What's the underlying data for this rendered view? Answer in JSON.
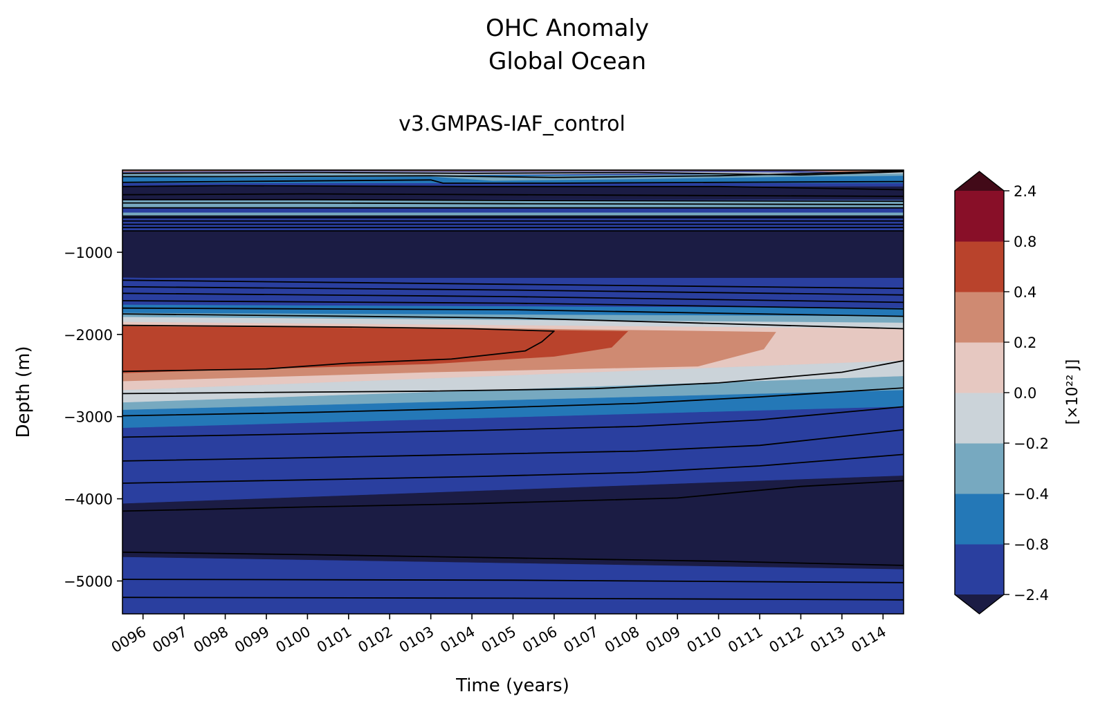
{
  "chart_data": {
    "type": "heatmap",
    "title": "OHC Anomaly",
    "subtitle": "Global Ocean",
    "run_name": "v3.GMPAS-IAF_control",
    "xlabel": "Time (years)",
    "ylabel": "Depth (m)",
    "colorbar_label": "[×10²² J]",
    "x_range": [
      95.5,
      114.5
    ],
    "y_range": [
      -5400,
      0
    ],
    "x_ticks": [
      {
        "value": 96,
        "label": "0096"
      },
      {
        "value": 97,
        "label": "0097"
      },
      {
        "value": 98,
        "label": "0098"
      },
      {
        "value": 99,
        "label": "0099"
      },
      {
        "value": 100,
        "label": "0100"
      },
      {
        "value": 101,
        "label": "0101"
      },
      {
        "value": 102,
        "label": "0102"
      },
      {
        "value": 103,
        "label": "0103"
      },
      {
        "value": 104,
        "label": "0104"
      },
      {
        "value": 105,
        "label": "0105"
      },
      {
        "value": 106,
        "label": "0106"
      },
      {
        "value": 107,
        "label": "0107"
      },
      {
        "value": 108,
        "label": "0108"
      },
      {
        "value": 109,
        "label": "0109"
      },
      {
        "value": 110,
        "label": "0110"
      },
      {
        "value": 111,
        "label": "0111"
      },
      {
        "value": 112,
        "label": "0112"
      },
      {
        "value": 113,
        "label": "0113"
      },
      {
        "value": 114,
        "label": "0114"
      }
    ],
    "y_ticks": [
      {
        "value": -1000,
        "label": "−1000"
      },
      {
        "value": -2000,
        "label": "−2000"
      },
      {
        "value": -3000,
        "label": "−3000"
      },
      {
        "value": -4000,
        "label": "−4000"
      },
      {
        "value": -5000,
        "label": "−5000"
      }
    ],
    "colorbar": {
      "levels": [
        -2.4,
        -0.8,
        -0.4,
        -0.2,
        0.0,
        0.2,
        0.4,
        0.8,
        2.4
      ],
      "level_labels": [
        "−2.4",
        "−0.8",
        "−0.4",
        "−0.2",
        "0.0",
        "0.2",
        "0.4",
        "0.8",
        "2.4"
      ],
      "colors": [
        "#2a3f9f",
        "#2478b7",
        "#77a9c0",
        "#cbd3d9",
        "#e6c8c1",
        "#cf8a72",
        "#b9432c",
        "#880f28"
      ],
      "under_color": "#1b1c44",
      "over_color": "#420a18",
      "extend": "both"
    },
    "bands": [
      {
        "top": [
          -60,
          -60
        ],
        "bottom": [
          -200,
          -200
        ],
        "color": "#2a3f9f"
      },
      {
        "top": [
          -370,
          -370
        ],
        "bottom": [
          -460,
          -460
        ],
        "color": "#77a9c0"
      },
      {
        "top": [
          -520,
          -520
        ],
        "bottom": [
          -560,
          -560
        ],
        "color": "#77a9c0"
      },
      {
        "top": [
          -740,
          -740
        ],
        "bottom": [
          -1310,
          -1310
        ],
        "color": "#1b1c44"
      },
      {
        "top": [
          -1310,
          -1460
        ],
        "bottom": [
          -1640,
          -1680
        ],
        "color": "#2a3f9f"
      },
      {
        "top": [
          -1640,
          -1680
        ],
        "bottom": [
          -1740,
          -1780
        ],
        "color": "#2478b7"
      },
      {
        "top": [
          -1740,
          -1780
        ],
        "bottom": [
          -1790,
          -1860
        ],
        "color": "#77a9c0"
      },
      {
        "top": [
          -1790,
          -1860
        ],
        "bottom": [
          -1850,
          -1930
        ],
        "color": "#cbd3d9"
      },
      {
        "top": [
          -1850,
          -1930
        ],
        "bottom": [
          -2680,
          -2320
        ],
        "color": "#e6c8c1"
      },
      {
        "top": [
          -2680,
          -2320
        ],
        "bottom": [
          -2830,
          -2510
        ],
        "color": "#cbd3d9"
      },
      {
        "top": [
          -2830,
          -2510
        ],
        "bottom": [
          -2920,
          -2680
        ],
        "color": "#77a9c0"
      },
      {
        "top": [
          -2920,
          -2680
        ],
        "bottom": [
          -3140,
          -2880
        ],
        "color": "#2478b7"
      },
      {
        "top": [
          -3140,
          -2880
        ],
        "bottom": [
          -4060,
          -3720
        ],
        "color": "#2a3f9f"
      },
      {
        "top": [
          -4060,
          -3720
        ],
        "bottom": [
          -4710,
          -4860
        ],
        "color": "#1b1c44"
      },
      {
        "top": [
          -4710,
          -4860
        ],
        "bottom": [
          -5400,
          -5400
        ],
        "color": "#2a3f9f"
      }
    ],
    "warm_regions": [
      {
        "color": "#cf8a72",
        "points": [
          [
            95.5,
            -1880
          ],
          [
            101,
            -1900
          ],
          [
            111.4,
            -1970
          ],
          [
            111.1,
            -2180
          ],
          [
            109.5,
            -2390
          ],
          [
            103,
            -2460
          ],
          [
            95.5,
            -2570
          ]
        ]
      },
      {
        "color": "#b9432c",
        "points": [
          [
            95.5,
            -1900
          ],
          [
            101,
            -1920
          ],
          [
            107.8,
            -1960
          ],
          [
            107.4,
            -2160
          ],
          [
            106,
            -2270
          ],
          [
            103,
            -2360
          ],
          [
            95.5,
            -2470
          ]
        ]
      }
    ],
    "surface_regions": [
      {
        "color": "#1b1c44",
        "points": [
          [
            95.5,
            -200
          ],
          [
            114.5,
            -200
          ],
          [
            114.5,
            -360
          ],
          [
            95.5,
            -360
          ]
        ]
      },
      {
        "color": "#2478b7",
        "points": [
          [
            95.5,
            -60
          ],
          [
            114.5,
            -60
          ],
          [
            114.5,
            -160
          ],
          [
            95.5,
            -160
          ]
        ]
      },
      {
        "color": "#77a9c0",
        "points": [
          [
            95.5,
            -40
          ],
          [
            98,
            -50
          ],
          [
            103,
            -40
          ],
          [
            104.5,
            -80
          ],
          [
            108,
            -60
          ],
          [
            112,
            -40
          ],
          [
            114.5,
            -30
          ],
          [
            114.5,
            -70
          ],
          [
            112,
            -80
          ],
          [
            108,
            -110
          ],
          [
            104.5,
            -130
          ],
          [
            103,
            -80
          ],
          [
            98,
            -90
          ],
          [
            95.5,
            -80
          ]
        ]
      },
      {
        "color": "#cbd3d9",
        "points": [
          [
            95.5,
            -30
          ],
          [
            100,
            -20
          ],
          [
            104,
            -25
          ],
          [
            108,
            -20
          ],
          [
            112,
            -30
          ],
          [
            114.5,
            -20
          ],
          [
            114.5,
            -40
          ],
          [
            112,
            -50
          ],
          [
            108,
            -45
          ],
          [
            104,
            -60
          ],
          [
            100,
            -45
          ],
          [
            95.5,
            -50
          ]
        ]
      },
      {
        "color": "#cf8a72",
        "points": [
          [
            95.5,
            0
          ],
          [
            114.5,
            0
          ],
          [
            114.5,
            -15
          ],
          [
            113,
            -25
          ],
          [
            112,
            -12
          ],
          [
            104,
            -15
          ],
          [
            100,
            -12
          ],
          [
            95.5,
            -20
          ]
        ]
      }
    ],
    "contour_lines": [
      [
        [
          95.5,
          -1890
        ],
        [
          101,
          -1910
        ],
        [
          104,
          -1930
        ],
        [
          106,
          -1960
        ],
        [
          105.7,
          -2090
        ],
        [
          105.3,
          -2200
        ],
        [
          103.5,
          -2300
        ],
        [
          101,
          -2350
        ],
        [
          99,
          -2420
        ],
        [
          95.5,
          -2450
        ]
      ],
      [
        [
          95.5,
          -2720
        ],
        [
          103,
          -2690
        ],
        [
          107,
          -2660
        ],
        [
          110,
          -2590
        ],
        [
          113,
          -2460
        ],
        [
          114.5,
          -2320
        ]
      ],
      [
        [
          95.5,
          -2990
        ],
        [
          100,
          -2950
        ],
        [
          104,
          -2900
        ],
        [
          108,
          -2840
        ],
        [
          111,
          -2760
        ],
        [
          114.5,
          -2650
        ]
      ],
      [
        [
          95.5,
          -3250
        ],
        [
          100,
          -3210
        ],
        [
          104,
          -3170
        ],
        [
          108,
          -3120
        ],
        [
          111,
          -3040
        ],
        [
          114.5,
          -2880
        ]
      ],
      [
        [
          95.5,
          -3540
        ],
        [
          100,
          -3500
        ],
        [
          104,
          -3460
        ],
        [
          108,
          -3420
        ],
        [
          111,
          -3350
        ],
        [
          114.5,
          -3160
        ]
      ],
      [
        [
          95.5,
          -3810
        ],
        [
          100,
          -3770
        ],
        [
          104,
          -3730
        ],
        [
          108,
          -3680
        ],
        [
          111,
          -3600
        ],
        [
          114.5,
          -3460
        ]
      ],
      [
        [
          95.5,
          -4150
        ],
        [
          100,
          -4100
        ],
        [
          104,
          -4060
        ],
        [
          109,
          -3990
        ],
        [
          112,
          -3850
        ],
        [
          114.5,
          -3780
        ]
      ],
      [
        [
          95.5,
          -4650
        ],
        [
          100,
          -4680
        ],
        [
          105,
          -4720
        ],
        [
          110,
          -4760
        ],
        [
          114.5,
          -4810
        ]
      ],
      [
        [
          95.5,
          -4980
        ],
        [
          105,
          -4990
        ],
        [
          114.5,
          -5020
        ]
      ],
      [
        [
          95.5,
          -5200
        ],
        [
          105,
          -5210
        ],
        [
          114.5,
          -5230
        ]
      ],
      [
        [
          95.5,
          -1750
        ],
        [
          105,
          -1800
        ],
        [
          114.5,
          -1930
        ]
      ],
      [
        [
          95.5,
          -1680
        ],
        [
          105,
          -1700
        ],
        [
          114.5,
          -1780
        ]
      ],
      [
        [
          95.5,
          -1590
        ],
        [
          105,
          -1620
        ],
        [
          114.5,
          -1690
        ]
      ],
      [
        [
          95.5,
          -1500
        ],
        [
          105,
          -1540
        ],
        [
          114.5,
          -1610
        ]
      ],
      [
        [
          95.5,
          -1420
        ],
        [
          105,
          -1460
        ],
        [
          114.5,
          -1520
        ]
      ],
      [
        [
          95.5,
          -1340
        ],
        [
          105,
          -1390
        ],
        [
          114.5,
          -1440
        ]
      ],
      [
        [
          95.5,
          -740
        ],
        [
          114.5,
          -740
        ]
      ],
      [
        [
          95.5,
          -700
        ],
        [
          114.5,
          -700
        ]
      ],
      [
        [
          95.5,
          -660
        ],
        [
          114.5,
          -660
        ]
      ],
      [
        [
          95.5,
          -620
        ],
        [
          114.5,
          -620
        ]
      ],
      [
        [
          95.5,
          -580
        ],
        [
          114.5,
          -580
        ]
      ],
      [
        [
          95.5,
          -560
        ],
        [
          114.5,
          -560
        ]
      ],
      [
        [
          95.5,
          -460
        ],
        [
          114.5,
          -460
        ]
      ],
      [
        [
          95.5,
          -400
        ],
        [
          100,
          -400
        ],
        [
          105,
          -410
        ],
        [
          114.5,
          -420
        ]
      ],
      [
        [
          95.5,
          -360
        ],
        [
          100,
          -360
        ],
        [
          105,
          -370
        ],
        [
          114.5,
          -380
        ]
      ],
      [
        [
          95.5,
          -300
        ],
        [
          100,
          -290
        ],
        [
          105,
          -300
        ],
        [
          114.5,
          -320
        ]
      ],
      [
        [
          95.5,
          -200
        ],
        [
          98,
          -190
        ],
        [
          104,
          -200
        ],
        [
          110,
          -200
        ],
        [
          114.5,
          -240
        ]
      ],
      [
        [
          95.5,
          -150
        ],
        [
          98,
          -140
        ],
        [
          103,
          -120
        ],
        [
          103.3,
          -160
        ],
        [
          106,
          -160
        ],
        [
          110,
          -150
        ],
        [
          114.5,
          -140
        ]
      ],
      [
        [
          95.5,
          -80
        ],
        [
          98,
          -80
        ],
        [
          103,
          -70
        ],
        [
          106,
          -90
        ],
        [
          110,
          -70
        ],
        [
          114.5,
          -10
        ]
      ],
      [
        [
          95.5,
          -40
        ],
        [
          100,
          -30
        ],
        [
          104,
          -40
        ],
        [
          108,
          -30
        ],
        [
          112,
          -60
        ],
        [
          114.5,
          -20
        ]
      ],
      [
        [
          95.5,
          0
        ],
        [
          114.5,
          0
        ]
      ]
    ]
  }
}
